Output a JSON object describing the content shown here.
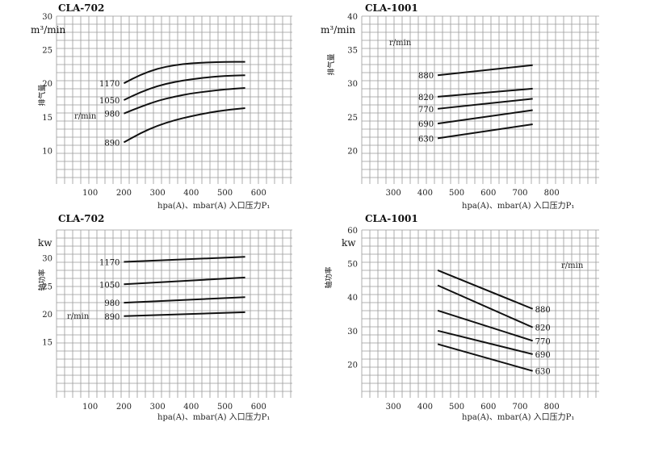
{
  "chart_data": [
    {
      "type": "line",
      "title": "CLA-702",
      "unit": "m³/min",
      "ylabel": "排气量",
      "xlabel": "hpa(A)、mbar(A) 入口压力P₁",
      "rpm_label": "r/min",
      "xlim": [
        0,
        700
      ],
      "ylim": [
        5,
        30
      ],
      "xticks": [
        100,
        200,
        300,
        400,
        500,
        600
      ],
      "yticks": [
        10,
        15,
        20,
        25,
        30
      ],
      "x": [
        200,
        250,
        300,
        350,
        400,
        450,
        500,
        560
      ],
      "series": [
        {
          "name": "1170",
          "values": [
            20.0,
            21.3,
            22.2,
            22.7,
            23.0,
            23.1,
            23.2,
            23.2
          ]
        },
        {
          "name": "1050",
          "values": [
            17.5,
            18.7,
            19.6,
            20.2,
            20.6,
            20.9,
            21.1,
            21.2
          ]
        },
        {
          "name": "980",
          "values": [
            15.5,
            16.5,
            17.4,
            18.0,
            18.5,
            18.8,
            19.1,
            19.3
          ]
        },
        {
          "name": "890",
          "values": [
            11.2,
            12.6,
            13.7,
            14.5,
            15.1,
            15.6,
            16.0,
            16.3
          ]
        }
      ]
    },
    {
      "type": "line",
      "title": "CLA-1001",
      "unit": "m³/min",
      "ylabel": "排气量",
      "xlabel": "hpa(A)、mbar(A) 入口压力P₁",
      "rpm_label": "r/min",
      "xlim": [
        200,
        950
      ],
      "ylim": [
        15,
        40
      ],
      "xticks": [
        300,
        400,
        500,
        600,
        700,
        800
      ],
      "yticks": [
        20,
        25,
        30,
        35,
        40
      ],
      "x": [
        440,
        740
      ],
      "series": [
        {
          "name": "880",
          "values": [
            31.2,
            32.7
          ]
        },
        {
          "name": "820",
          "values": [
            28.0,
            29.2
          ]
        },
        {
          "name": "770",
          "values": [
            26.2,
            27.7
          ]
        },
        {
          "name": "690",
          "values": [
            24.0,
            26.0
          ]
        },
        {
          "name": "630",
          "values": [
            21.8,
            23.9
          ]
        }
      ]
    },
    {
      "type": "line",
      "title": "CLA-702",
      "unit": "kw",
      "ylabel": "轴功率",
      "xlabel": "hpa(A)、mbar(A) 入口压力P₁",
      "rpm_label": "r/min",
      "xlim": [
        0,
        700
      ],
      "ylim": [
        5,
        35
      ],
      "xticks": [
        100,
        200,
        300,
        400,
        500,
        600
      ],
      "yticks": [
        15,
        20,
        25,
        30
      ],
      "x": [
        200,
        560
      ],
      "series": [
        {
          "name": "1170",
          "values": [
            29.3,
            30.2
          ]
        },
        {
          "name": "1050",
          "values": [
            25.3,
            26.5
          ]
        },
        {
          "name": "980",
          "values": [
            22.0,
            23.0
          ]
        },
        {
          "name": "890",
          "values": [
            19.6,
            20.3
          ]
        }
      ]
    },
    {
      "type": "line",
      "title": "CLA-1001",
      "unit": "kw",
      "ylabel": "轴功率",
      "xlabel": "hpa(A)、mbar(A) 入口压力P₁",
      "rpm_label": "r/min",
      "xlim": [
        200,
        950
      ],
      "ylim": [
        10,
        60
      ],
      "xticks": [
        300,
        400,
        500,
        600,
        700,
        800
      ],
      "yticks": [
        20,
        30,
        40,
        50,
        60
      ],
      "x": [
        440,
        740
      ],
      "series": [
        {
          "name": "880",
          "values": [
            48.0,
            36.5
          ]
        },
        {
          "name": "820",
          "values": [
            43.5,
            31.0
          ]
        },
        {
          "name": "770",
          "values": [
            36.0,
            27.0
          ]
        },
        {
          "name": "690",
          "values": [
            30.0,
            23.0
          ]
        },
        {
          "name": "630",
          "values": [
            26.0,
            18.0
          ]
        }
      ]
    }
  ]
}
